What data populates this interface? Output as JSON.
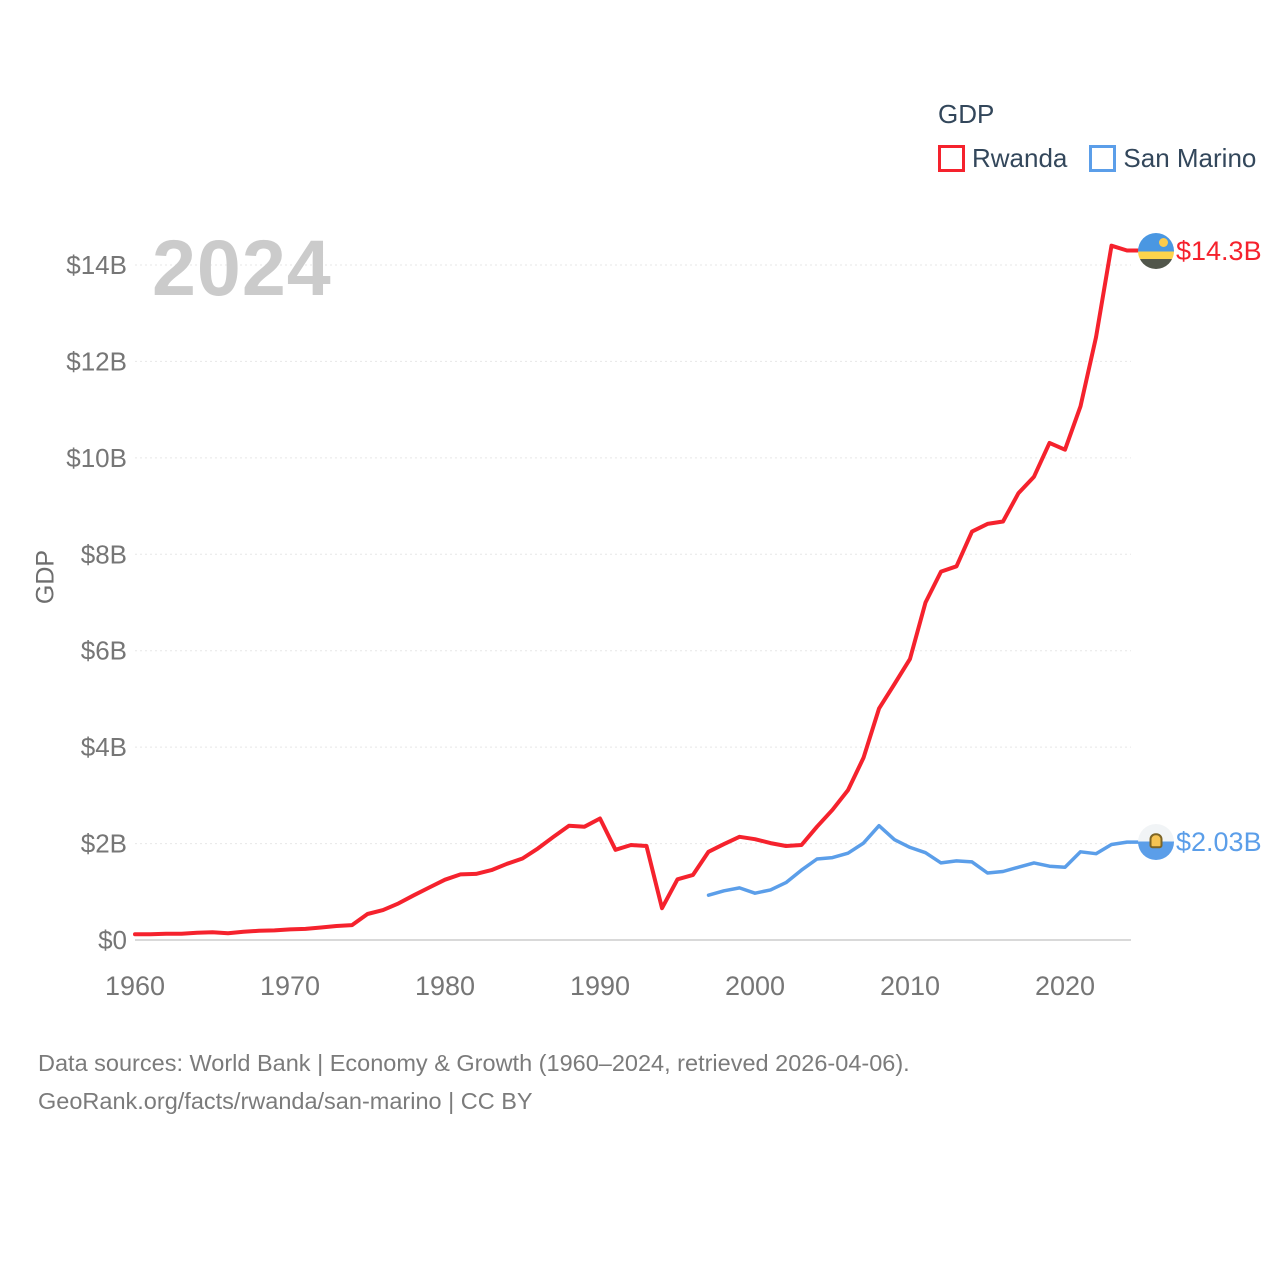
{
  "watermark": "2024",
  "legend": {
    "title": "GDP",
    "items": [
      {
        "label": "Rwanda"
      },
      {
        "label": "San Marino"
      }
    ]
  },
  "y_axis_title": "GDP",
  "footer": {
    "line1": "Data sources: World Bank | Economy & Growth (1960–2024, retrieved 2026-04-06).",
    "line2": "GeoRank.org/facts/rwanda/san-marino | CC BY"
  },
  "colors": {
    "rwanda": "#f5222d",
    "san_marino": "#5b9ee9",
    "axis_text": "#767676",
    "legend_text": "#33475b",
    "gridline": "#e7e7e7",
    "zero_line": "#d9d9d9",
    "watermark": "#cbcbcb"
  },
  "chart_data": {
    "type": "line",
    "title": "GDP",
    "xlabel": "",
    "ylabel": "GDP",
    "xlim": [
      1960,
      2024
    ],
    "ylim": [
      0,
      14.5
    ],
    "x_ticks": [
      1960,
      1970,
      1980,
      1990,
      2000,
      2010,
      2020
    ],
    "x_tick_labels": [
      "1960",
      "1970",
      "1980",
      "1990",
      "2000",
      "2010",
      "2020"
    ],
    "y_ticks": [
      0,
      2,
      4,
      6,
      8,
      10,
      12,
      14
    ],
    "y_tick_labels": [
      "$0",
      "$2B",
      "$4B",
      "$6B",
      "$8B",
      "$10B",
      "$12B",
      "$14B"
    ],
    "grid": "horizontal-dashed",
    "legend_position": "top-right",
    "units": "billions USD",
    "series": [
      {
        "name": "Rwanda",
        "color": "#f5222d",
        "end_label": "$14.3B",
        "x": [
          1960,
          1961,
          1962,
          1963,
          1964,
          1965,
          1966,
          1967,
          1968,
          1969,
          1970,
          1971,
          1972,
          1973,
          1974,
          1975,
          1976,
          1977,
          1978,
          1979,
          1980,
          1981,
          1982,
          1983,
          1984,
          1985,
          1986,
          1987,
          1988,
          1989,
          1990,
          1991,
          1992,
          1993,
          1994,
          1995,
          1996,
          1997,
          1998,
          1999,
          2000,
          2001,
          2002,
          2003,
          2004,
          2005,
          2006,
          2007,
          2008,
          2009,
          2010,
          2011,
          2012,
          2013,
          2014,
          2015,
          2016,
          2017,
          2018,
          2019,
          2020,
          2021,
          2022,
          2023,
          2024
        ],
        "values": [
          0.12,
          0.12,
          0.13,
          0.13,
          0.15,
          0.16,
          0.14,
          0.17,
          0.19,
          0.2,
          0.22,
          0.23,
          0.26,
          0.29,
          0.31,
          0.54,
          0.62,
          0.76,
          0.93,
          1.09,
          1.25,
          1.36,
          1.37,
          1.45,
          1.58,
          1.69,
          1.9,
          2.14,
          2.37,
          2.35,
          2.52,
          1.87,
          1.97,
          1.95,
          0.66,
          1.26,
          1.35,
          1.83,
          1.99,
          2.14,
          2.09,
          2.01,
          1.95,
          1.97,
          2.35,
          2.7,
          3.11,
          3.78,
          4.8,
          5.31,
          5.83,
          7.0,
          7.64,
          7.75,
          8.47,
          8.63,
          8.68,
          9.27,
          9.61,
          10.31,
          10.17,
          11.07,
          12.5,
          14.4,
          14.3
        ]
      },
      {
        "name": "San Marino",
        "color": "#5b9ee9",
        "end_label": "$2.03B",
        "x": [
          1997,
          1998,
          1999,
          2000,
          2001,
          2002,
          2003,
          2004,
          2005,
          2006,
          2007,
          2008,
          2009,
          2010,
          2011,
          2012,
          2013,
          2014,
          2015,
          2016,
          2017,
          2018,
          2019,
          2020,
          2021,
          2022,
          2023,
          2024
        ],
        "values": [
          0.93,
          1.02,
          1.08,
          0.97,
          1.04,
          1.19,
          1.45,
          1.68,
          1.71,
          1.8,
          2.01,
          2.37,
          2.08,
          1.92,
          1.81,
          1.6,
          1.64,
          1.62,
          1.39,
          1.42,
          1.51,
          1.6,
          1.53,
          1.51,
          1.83,
          1.79,
          1.98,
          2.03
        ]
      }
    ]
  }
}
